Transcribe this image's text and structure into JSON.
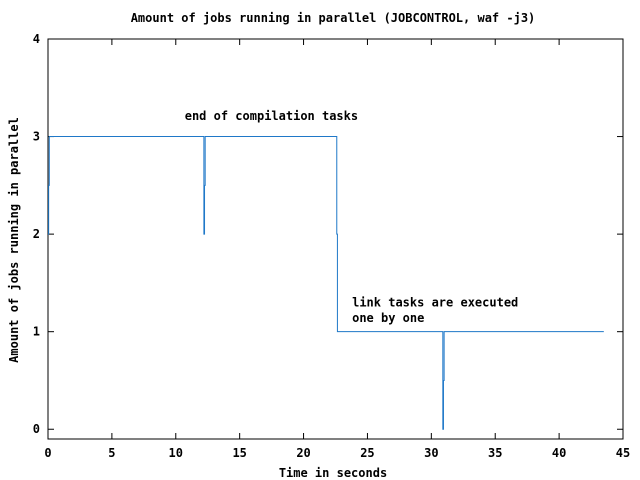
{
  "chart_data": {
    "type": "line",
    "title": "Amount of jobs running in parallel (JOBCONTROL, waf -j3)",
    "xlabel": "Time in seconds",
    "ylabel": "Amount of jobs running in parallel",
    "xlim": [
      0,
      45
    ],
    "ylim": [
      -0.1,
      4
    ],
    "xticks": [
      0,
      5,
      10,
      15,
      20,
      25,
      30,
      35,
      40,
      45
    ],
    "yticks": [
      0,
      1,
      2,
      3,
      4
    ],
    "grid": false,
    "line_color": "#1f78c8",
    "series": [
      {
        "step": true,
        "x": [
          0,
          0.05,
          0.1,
          12.2,
          12.25,
          12.3,
          22.6,
          22.65,
          22.75,
          30.9,
          30.95,
          31.0,
          43.5
        ],
        "y": [
          2,
          2.5,
          3,
          2,
          2.5,
          3,
          2,
          1,
          1,
          0,
          0.5,
          1,
          1
        ]
      }
    ],
    "annotations": [
      {
        "text": "end of compilation tasks",
        "x": 10.7,
        "y": 3.17
      },
      {
        "text": "link tasks are executed",
        "x": 23.8,
        "y": 1.26
      },
      {
        "text": "one by one",
        "x": 23.8,
        "y": 1.1
      }
    ]
  }
}
